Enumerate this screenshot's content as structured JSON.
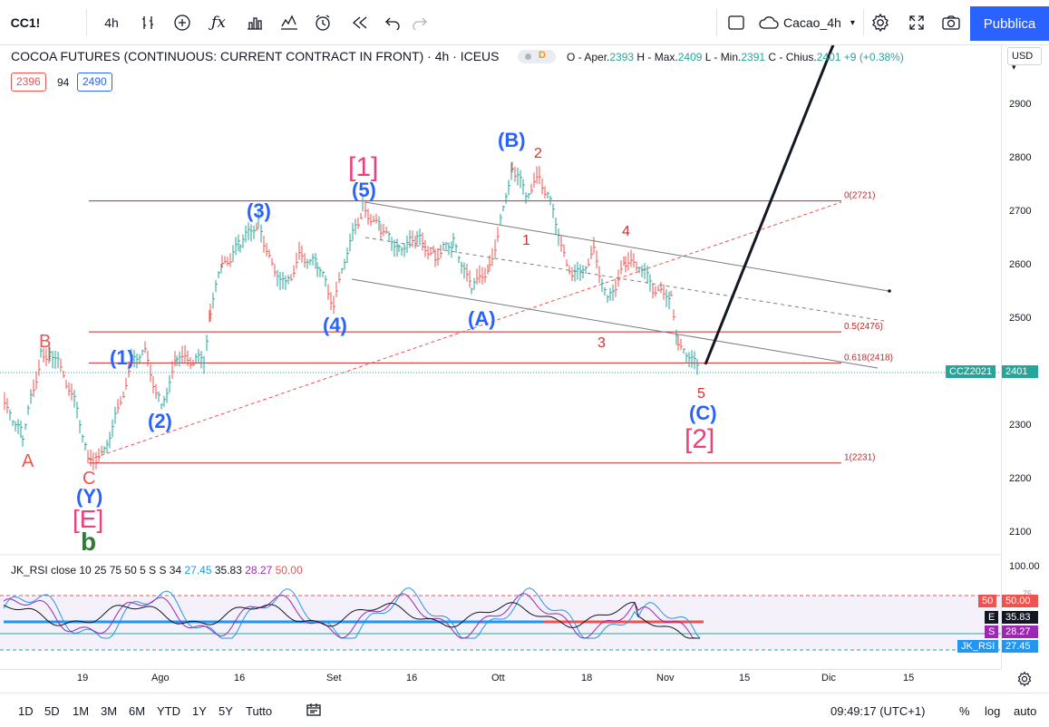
{
  "toolbar": {
    "symbol": "CC1!",
    "interval": "4h",
    "layout_name": "Cacao_4h",
    "publish_label": "Pubblica",
    "icons": [
      "bar-style-icon",
      "add-compare-icon",
      "indicators-icon",
      "templates-icon",
      "alert-icon",
      "replay-icon",
      "undo-icon",
      "redo-icon",
      "fullscreen-toggle-icon",
      "cloud-icon",
      "settings-icon",
      "expand-icon",
      "camera-icon"
    ]
  },
  "legend": {
    "title": "COCOA FUTURES (CONTINUOUS: CURRENT CONTRACT IN FRONT) · 4h · ICEUS",
    "d_badge": "D",
    "ohlc": {
      "open_label": "O - Aper.",
      "open": "2393",
      "high_label": "H - Max.",
      "high": "2409",
      "low_label": "L - Min.",
      "low": "2391",
      "close_label": "C - Chius.",
      "close": "2401",
      "change": "+9 (+0.38%)"
    },
    "bid": "2396",
    "spread": "94",
    "ask": "2490"
  },
  "currency": "USD",
  "price_axis": {
    "labels": [
      "2900",
      "2800",
      "2700",
      "2600",
      "2500",
      "2400",
      "2300",
      "2200",
      "2100"
    ],
    "last_price": "2401",
    "last_symbol": "CCZ2021"
  },
  "fib_levels": [
    {
      "label": "0(2721)",
      "price": 2721
    },
    {
      "label": "0.5(2476)",
      "price": 2476
    },
    {
      "label": "0.618(2418)",
      "price": 2418
    },
    {
      "label": "1(2231)",
      "price": 2231
    }
  ],
  "wave_labels": {
    "A": "A",
    "B": "B",
    "C": "C",
    "Y": "(Y)",
    "E": "[E]",
    "b": "b",
    "w1": "(1)",
    "w2": "(2)",
    "w3": "(3)",
    "w4": "(4)",
    "w5": "(5)",
    "big1": "[1]",
    "bigA": "(A)",
    "bigB": "(B)",
    "bigC": "(C)",
    "big2": "[2]",
    "n1": "1",
    "n2": "2",
    "n3": "3",
    "n4": "4",
    "n5": "5"
  },
  "indicator": {
    "name": "JK_RSI",
    "params": "close 10 25 75 50 5 S S 34",
    "v1": "27.45",
    "v2": "35.83",
    "v3": "28.27",
    "v4": "50.00",
    "axis_top": "100.00",
    "axis_75": "75",
    "tags": [
      {
        "key": "50",
        "value": "50.00",
        "color": "#ef5350"
      },
      {
        "key": "E",
        "value": "35.83",
        "color": "#131722"
      },
      {
        "key": "S",
        "value": "28.27",
        "color": "#9c27b0"
      },
      {
        "key": "JK_RSI",
        "value": "27.45",
        "color": "#2196f3"
      }
    ]
  },
  "time_axis": [
    "19",
    "Ago",
    "16",
    "Set",
    "16",
    "Ott",
    "18",
    "Nov",
    "15",
    "Dic",
    "15"
  ],
  "bottom": {
    "ranges": [
      "1D",
      "5D",
      "1M",
      "3M",
      "6M",
      "YTD",
      "1Y",
      "5Y",
      "Tutto"
    ],
    "clock": "09:49:17 (UTC+1)",
    "percent": "%",
    "log": "log",
    "auto": "auto"
  }
}
